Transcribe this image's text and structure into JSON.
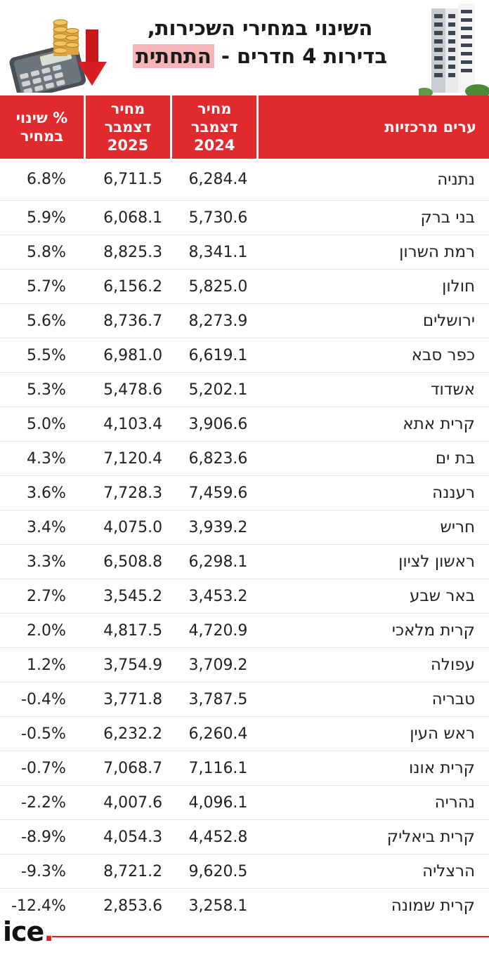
{
  "title": {
    "line1": "השינוי במחירי השכירות,",
    "line2_prefix": "בדירות 4 חדרים - ",
    "line2_highlight": "התחתית"
  },
  "table": {
    "headers": {
      "city": "ערים מרכזיות",
      "price_2024": "מחיר דצמבר 2024",
      "price_2025": "מחיר דצמבר 2025",
      "pct_change": "% שינוי במחיר"
    },
    "rows": [
      {
        "city": "נתניה",
        "p2024": "6,284.4",
        "p2025": "6,711.5",
        "pct": "6.8%"
      },
      {
        "city": "בני ברק",
        "p2024": "5,730.6",
        "p2025": "6,068.1",
        "pct": "5.9%"
      },
      {
        "city": "רמת השרון",
        "p2024": "8,341.1",
        "p2025": "8,825.3",
        "pct": "5.8%"
      },
      {
        "city": "חולון",
        "p2024": "5,825.0",
        "p2025": "6,156.2",
        "pct": "5.7%"
      },
      {
        "city": "ירושלים",
        "p2024": "8,273.9",
        "p2025": "8,736.7",
        "pct": "5.6%"
      },
      {
        "city": "כפר סבא",
        "p2024": "6,619.1",
        "p2025": "6,981.0",
        "pct": "5.5%"
      },
      {
        "city": "אשדוד",
        "p2024": "5,202.1",
        "p2025": "5,478.6",
        "pct": "5.3%"
      },
      {
        "city": "קרית אתא",
        "p2024": "3,906.6",
        "p2025": "4,103.4",
        "pct": "5.0%"
      },
      {
        "city": "בת ים",
        "p2024": "6,823.6",
        "p2025": "7,120.4",
        "pct": "4.3%"
      },
      {
        "city": "רעננה",
        "p2024": "7,459.6",
        "p2025": "7,728.3",
        "pct": "3.6%"
      },
      {
        "city": "חריש",
        "p2024": "3,939.2",
        "p2025": "4,075.0",
        "pct": "3.4%"
      },
      {
        "city": "ראשון לציון",
        "p2024": "6,298.1",
        "p2025": "6,508.8",
        "pct": "3.3%"
      },
      {
        "city": "באר שבע",
        "p2024": "3,453.2",
        "p2025": "3,545.2",
        "pct": "2.7%"
      },
      {
        "city": "קרית מלאכי",
        "p2024": "4,720.9",
        "p2025": "4,817.5",
        "pct": "2.0%"
      },
      {
        "city": "עפולה",
        "p2024": "3,709.2",
        "p2025": "3,754.9",
        "pct": "1.2%"
      },
      {
        "city": "טבריה",
        "p2024": "3,787.5",
        "p2025": "3,771.8",
        "pct": "-0.4%"
      },
      {
        "city": "ראש העין",
        "p2024": "6,260.4",
        "p2025": "6,232.2",
        "pct": "-0.5%"
      },
      {
        "city": "קרית אונו",
        "p2024": "7,116.1",
        "p2025": "7,068.7",
        "pct": "-0.7%"
      },
      {
        "city": "נהריה",
        "p2024": "4,096.1",
        "p2025": "4,007.6",
        "pct": "-2.2%"
      },
      {
        "city": "קרית ביאליק",
        "p2024": "4,452.8",
        "p2025": "4,054.3",
        "pct": "-8.9%"
      },
      {
        "city": "הרצליה",
        "p2024": "9,620.5",
        "p2025": "8,721.2",
        "pct": "-9.3%"
      },
      {
        "city": "קרית שמונה",
        "p2024": "3,258.1",
        "p2025": "2,853.6",
        "pct": "-12.4%"
      }
    ]
  },
  "logo": {
    "text": "ice",
    "dot": "."
  },
  "colors": {
    "accent": "#e02a2e",
    "highlight": "#f6b6b9"
  },
  "icons": [
    "building-illustration",
    "calculator-coins-down-arrow-illustration"
  ]
}
